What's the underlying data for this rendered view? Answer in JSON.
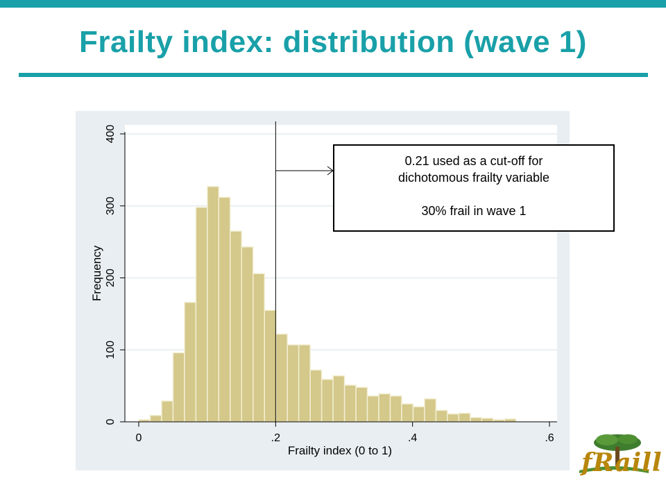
{
  "slide": {
    "title": "Frailty index: distribution (wave 1)"
  },
  "annotation": {
    "line1": "0.21 used as a cut-off for",
    "line2": "dichotomous frailty variable",
    "line3": "30% frail in wave 1"
  },
  "logo": {
    "text": "fRaill"
  },
  "colors": {
    "accent": "#19a0a8",
    "bar_fill": "#d4c88a",
    "bar_stroke": "#f3efd5",
    "plot_bg": "#e8eef2"
  },
  "chart_data": {
    "type": "bar",
    "title": "",
    "xlabel": "Frailty index (0 to 1)",
    "ylabel": "Frequency",
    "xlim": [
      0,
      0.6
    ],
    "ylim": [
      0,
      400
    ],
    "xticks": [
      {
        "value": 0,
        "label": "0"
      },
      {
        "value": 0.2,
        "label": ".2"
      },
      {
        "value": 0.4,
        "label": ".4"
      },
      {
        "value": 0.6,
        "label": ".6"
      }
    ],
    "yticks": [
      {
        "value": 0,
        "label": "0"
      },
      {
        "value": 100,
        "label": "100"
      },
      {
        "value": 200,
        "label": "200"
      },
      {
        "value": 300,
        "label": "300"
      },
      {
        "value": 400,
        "label": "400"
      }
    ],
    "bin_width": 0.0167,
    "bins_start": 0,
    "values": [
      3,
      9,
      29,
      96,
      166,
      298,
      327,
      312,
      265,
      243,
      206,
      155,
      122,
      107,
      107,
      72,
      59,
      64,
      51,
      48,
      36,
      39,
      36,
      25,
      21,
      32,
      16,
      11,
      12,
      6,
      5,
      3,
      4
    ],
    "cutoff_x": 0.2,
    "grid": true
  }
}
